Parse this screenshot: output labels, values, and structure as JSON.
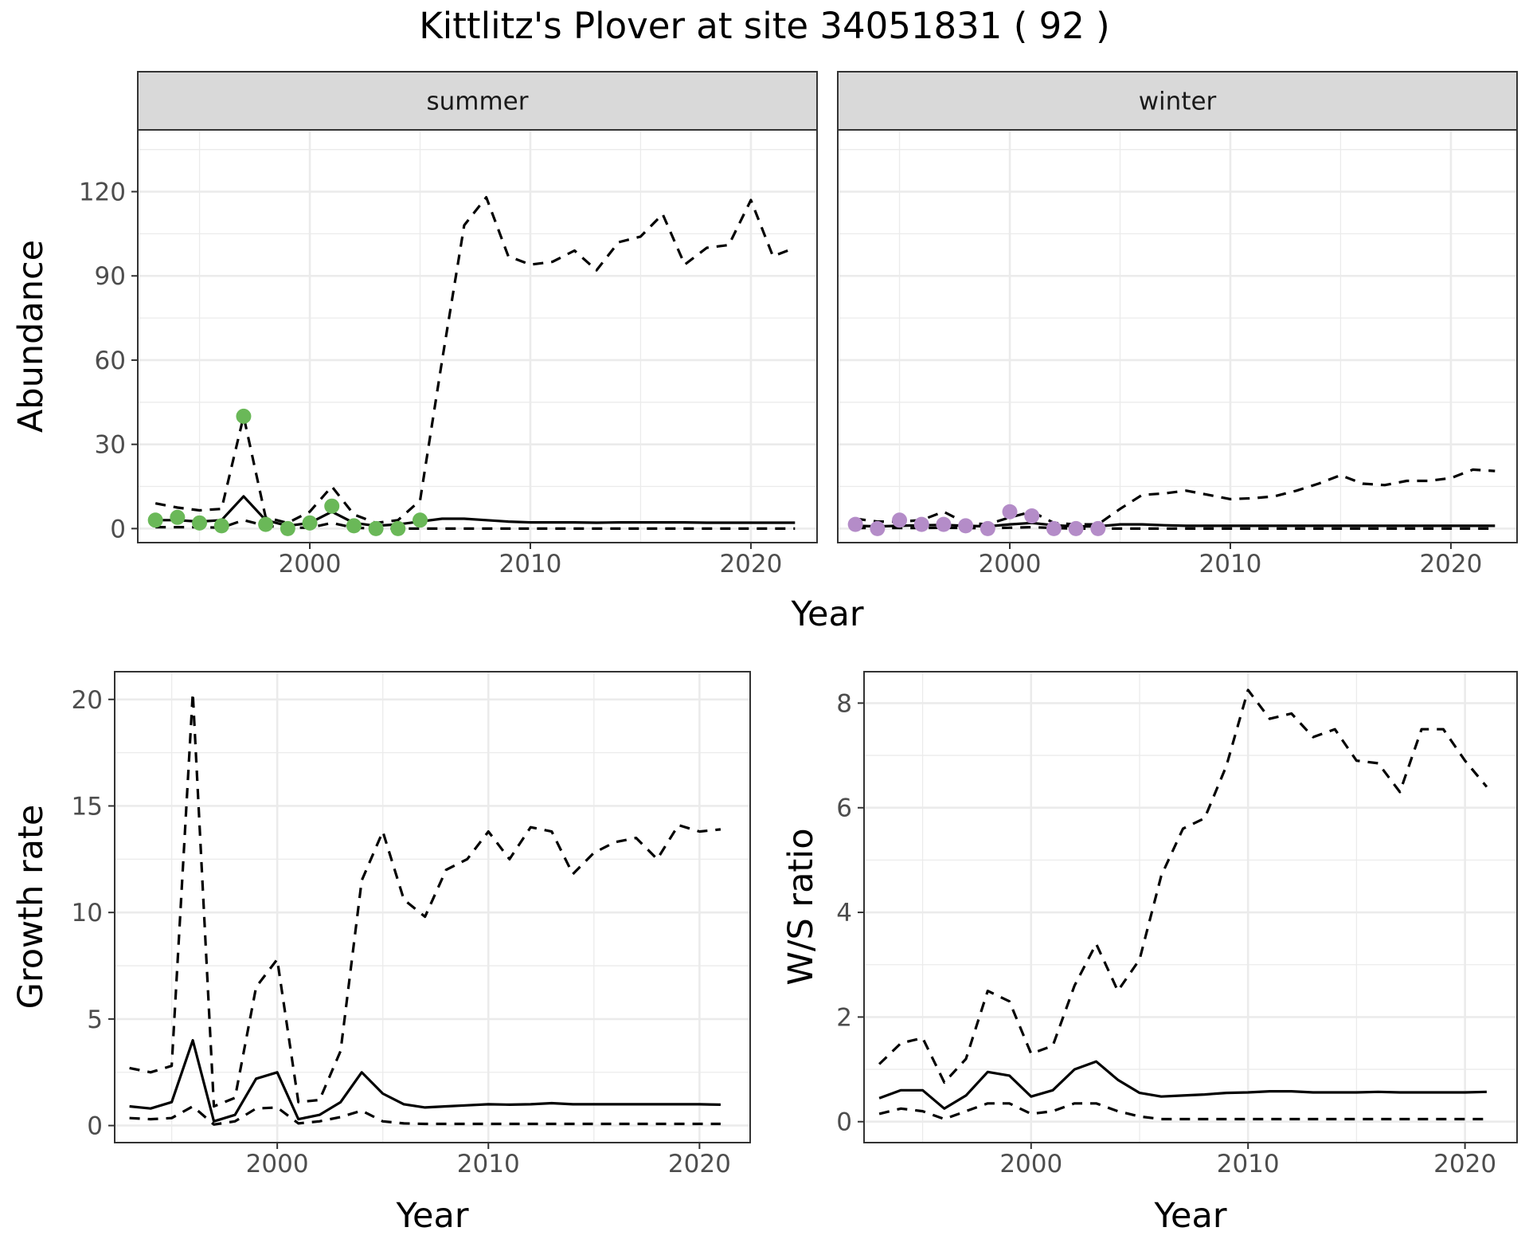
{
  "title": "Kittlitz's Plover at site 34051831 ( 92 )",
  "colors": {
    "summer_points": "#6ab858",
    "winter_points": "#b48cc8",
    "lines": "#000000",
    "grid": "#ebebeb",
    "strip_fill": "#d9d9d9"
  },
  "chart_data": [
    {
      "type": "line",
      "panel": "summer",
      "strip": "summer",
      "xlabel": "Year",
      "ylabel": "Abundance",
      "xlim": [
        1992.2,
        2023.0
      ],
      "ylim": [
        -5,
        142
      ],
      "xticks": [
        2000,
        2010,
        2020
      ],
      "yticks": [
        0,
        30,
        60,
        90,
        120
      ],
      "grid": true,
      "series": [
        {
          "role": "median",
          "style": "solid",
          "x": [
            1993,
            1994,
            1995,
            1996,
            1997,
            1998,
            1999,
            2000,
            2001,
            2002,
            2003,
            2004,
            2005,
            2006,
            2007,
            2008,
            2009,
            2010,
            2011,
            2012,
            2013,
            2014,
            2015,
            2016,
            2017,
            2018,
            2019,
            2020,
            2021,
            2022
          ],
          "y": [
            3,
            3,
            2.5,
            3,
            11.5,
            3,
            1,
            2,
            6,
            2,
            1,
            1.5,
            2.5,
            3.5,
            3.5,
            3,
            2.5,
            2.2,
            2.2,
            2.2,
            2.1,
            2.2,
            2.2,
            2.2,
            2.2,
            2.1,
            2.1,
            2.1,
            2.1,
            2.1
          ]
        },
        {
          "role": "upper",
          "style": "dashed",
          "x": [
            1993,
            1994,
            1995,
            1996,
            1997,
            1998,
            1999,
            2000,
            2001,
            2002,
            2003,
            2004,
            2005,
            2006,
            2007,
            2008,
            2009,
            2010,
            2011,
            2012,
            2013,
            2014,
            2015,
            2016,
            2017,
            2018,
            2019,
            2020,
            2021,
            2022
          ],
          "y": [
            9,
            7.5,
            6.5,
            7,
            40,
            4,
            2,
            6,
            15,
            5,
            2,
            3,
            10,
            60,
            108,
            118,
            97,
            94,
            95,
            99,
            92,
            102,
            104,
            112,
            94,
            100,
            101,
            117,
            97,
            100
          ]
        },
        {
          "role": "lower",
          "style": "dashed",
          "x": [
            1993,
            1994,
            1995,
            1996,
            1997,
            1998,
            1999,
            2000,
            2001,
            2002,
            2003,
            2004,
            2005,
            2006,
            2007,
            2008,
            2009,
            2010,
            2011,
            2012,
            2013,
            2014,
            2015,
            2016,
            2017,
            2018,
            2019,
            2020,
            2021,
            2022
          ],
          "y": [
            0.5,
            0.5,
            0.5,
            0.3,
            3,
            1,
            0.3,
            0.3,
            2,
            0.3,
            0,
            0,
            0,
            0,
            0,
            0,
            0,
            0,
            0,
            0,
            0,
            0,
            0,
            0,
            0,
            0,
            0,
            0,
            0,
            0
          ]
        },
        {
          "role": "observed",
          "style": "points",
          "x": [
            1993,
            1994,
            1995,
            1996,
            1997,
            1998,
            1999,
            2000,
            2001,
            2002,
            2003,
            2004,
            2005
          ],
          "y": [
            3,
            4,
            2,
            1,
            40,
            1.5,
            0,
            2,
            8,
            1,
            0,
            0,
            3
          ]
        }
      ]
    },
    {
      "type": "line",
      "panel": "winter",
      "strip": "winter",
      "xlabel": "Year",
      "ylabel": "",
      "xlim": [
        1992.2,
        2023.0
      ],
      "ylim": [
        -5,
        142
      ],
      "xticks": [
        2000,
        2010,
        2020
      ],
      "yticks": [],
      "grid": true,
      "series": [
        {
          "role": "median",
          "style": "solid",
          "x": [
            1993,
            1994,
            1995,
            1996,
            1997,
            1998,
            1999,
            2000,
            2001,
            2002,
            2003,
            2004,
            2005,
            2006,
            2007,
            2008,
            2009,
            2010,
            2011,
            2012,
            2013,
            2014,
            2015,
            2016,
            2017,
            2018,
            2019,
            2020,
            2021,
            2022
          ],
          "y": [
            1,
            0.8,
            1,
            1.2,
            1.3,
            1,
            0.8,
            1.5,
            2,
            1.2,
            0.8,
            0.8,
            1.5,
            1.5,
            1.2,
            1,
            1,
            1,
            1,
            1,
            1,
            1,
            1,
            1,
            1,
            1,
            1,
            1,
            1,
            1
          ]
        },
        {
          "role": "upper",
          "style": "dashed",
          "x": [
            1993,
            1994,
            1995,
            1996,
            1997,
            1998,
            1999,
            2000,
            2001,
            2002,
            2003,
            2004,
            2005,
            2006,
            2007,
            2008,
            2009,
            2010,
            2011,
            2012,
            2013,
            2014,
            2015,
            2016,
            2017,
            2018,
            2019,
            2020,
            2021,
            2022
          ],
          "y": [
            3.5,
            2.5,
            2.5,
            3,
            6,
            2,
            1.5,
            4,
            6,
            2,
            1.5,
            1.5,
            7,
            12,
            12.5,
            13.5,
            12,
            10.5,
            10.8,
            11.5,
            13.5,
            16,
            19,
            16,
            15.5,
            17,
            17,
            18,
            21,
            20.5
          ]
        },
        {
          "role": "lower",
          "style": "dashed",
          "x": [
            1993,
            1994,
            1995,
            1996,
            1997,
            1998,
            1999,
            2000,
            2001,
            2002,
            2003,
            2004,
            2005,
            2006,
            2007,
            2008,
            2009,
            2010,
            2011,
            2012,
            2013,
            2014,
            2015,
            2016,
            2017,
            2018,
            2019,
            2020,
            2021,
            2022
          ],
          "y": [
            0.2,
            0.2,
            0.2,
            0.2,
            0.3,
            0.2,
            0.1,
            0.3,
            0.5,
            0.2,
            0,
            0,
            0,
            0,
            0,
            0,
            0,
            0,
            0,
            0,
            0,
            0,
            0,
            0,
            0,
            0,
            0,
            0,
            0,
            0
          ]
        },
        {
          "role": "observed",
          "style": "points",
          "x": [
            1993,
            1994,
            1995,
            1996,
            1997,
            1998,
            1999,
            2000,
            2001,
            2002,
            2003,
            2004
          ],
          "y": [
            1.5,
            0,
            3,
            1.5,
            1.5,
            1,
            0,
            6,
            4.5,
            0,
            0,
            0
          ]
        }
      ]
    },
    {
      "type": "line",
      "panel": "growth",
      "xlabel": "Year",
      "ylabel": "Growth rate",
      "xlim": [
        1992.3,
        2022.4
      ],
      "ylim": [
        -0.8,
        21.3
      ],
      "xticks": [
        2000,
        2010,
        2020
      ],
      "yticks": [
        0,
        5,
        10,
        15,
        20
      ],
      "grid": true,
      "series": [
        {
          "role": "median",
          "style": "solid",
          "x": [
            1993,
            1994,
            1995,
            1996,
            1997,
            1998,
            1999,
            2000,
            2001,
            2002,
            2003,
            2004,
            2005,
            2006,
            2007,
            2008,
            2009,
            2010,
            2011,
            2012,
            2013,
            2014,
            2015,
            2016,
            2017,
            2018,
            2019,
            2020,
            2021
          ],
          "y": [
            0.9,
            0.8,
            1.1,
            4,
            0.2,
            0.5,
            2.2,
            2.5,
            0.3,
            0.5,
            1.1,
            2.5,
            1.5,
            1,
            0.85,
            0.9,
            0.95,
            1,
            0.98,
            1,
            1.05,
            1,
            1,
            1,
            1,
            1,
            1,
            1,
            0.98
          ]
        },
        {
          "role": "upper",
          "style": "dashed",
          "x": [
            1993,
            1994,
            1995,
            1996,
            1997,
            1998,
            1999,
            2000,
            2001,
            2002,
            2003,
            2004,
            2005,
            2006,
            2007,
            2008,
            2009,
            2010,
            2011,
            2012,
            2013,
            2014,
            2015,
            2016,
            2017,
            2018,
            2019,
            2020,
            2021
          ],
          "y": [
            2.7,
            2.5,
            2.8,
            20.3,
            0.9,
            1.3,
            6.5,
            7.8,
            1.1,
            1.2,
            3.5,
            11.5,
            13.8,
            10.6,
            9.8,
            12,
            12.5,
            13.8,
            12.5,
            14,
            13.8,
            11.8,
            12.8,
            13.3,
            13.5,
            12.5,
            14.1,
            13.8,
            13.9
          ]
        },
        {
          "role": "lower",
          "style": "dashed",
          "x": [
            1993,
            1994,
            1995,
            1996,
            1997,
            1998,
            1999,
            2000,
            2001,
            2002,
            2003,
            2004,
            2005,
            2006,
            2007,
            2008,
            2009,
            2010,
            2011,
            2012,
            2013,
            2014,
            2015,
            2016,
            2017,
            2018,
            2019,
            2020,
            2021
          ],
          "y": [
            0.35,
            0.3,
            0.35,
            0.9,
            0.05,
            0.2,
            0.8,
            0.85,
            0.1,
            0.2,
            0.4,
            0.7,
            0.2,
            0.1,
            0.08,
            0.08,
            0.08,
            0.08,
            0.08,
            0.08,
            0.08,
            0.08,
            0.08,
            0.08,
            0.08,
            0.08,
            0.08,
            0.08,
            0.08
          ]
        }
      ]
    },
    {
      "type": "line",
      "panel": "ws-ratio",
      "xlabel": "Year",
      "ylabel": "W/S ratio",
      "xlim": [
        1992.3,
        2022.4
      ],
      "ylim": [
        -0.4,
        8.6
      ],
      "xticks": [
        2000,
        2010,
        2020
      ],
      "yticks": [
        0,
        2,
        4,
        6,
        8
      ],
      "grid": true,
      "series": [
        {
          "role": "median",
          "style": "solid",
          "x": [
            1993,
            1994,
            1995,
            1996,
            1997,
            1998,
            1999,
            2000,
            2001,
            2002,
            2003,
            2004,
            2005,
            2006,
            2007,
            2008,
            2009,
            2010,
            2011,
            2012,
            2013,
            2014,
            2015,
            2016,
            2017,
            2018,
            2019,
            2020,
            2021
          ],
          "y": [
            0.45,
            0.6,
            0.6,
            0.25,
            0.5,
            0.95,
            0.88,
            0.48,
            0.6,
            1,
            1.15,
            0.8,
            0.55,
            0.48,
            0.5,
            0.52,
            0.55,
            0.56,
            0.58,
            0.58,
            0.56,
            0.56,
            0.56,
            0.57,
            0.56,
            0.56,
            0.56,
            0.56,
            0.57
          ]
        },
        {
          "role": "upper",
          "style": "dashed",
          "x": [
            1993,
            1994,
            1995,
            1996,
            1997,
            1998,
            1999,
            2000,
            2001,
            2002,
            2003,
            2004,
            2005,
            2006,
            2007,
            2008,
            2009,
            2010,
            2011,
            2012,
            2013,
            2014,
            2015,
            2016,
            2017,
            2018,
            2019,
            2020,
            2021
          ],
          "y": [
            1.1,
            1.5,
            1.6,
            0.75,
            1.2,
            2.5,
            2.3,
            1.3,
            1.45,
            2.6,
            3.4,
            2.5,
            3.1,
            4.7,
            5.6,
            5.8,
            6.8,
            8.25,
            7.7,
            7.8,
            7.35,
            7.5,
            6.9,
            6.85,
            6.3,
            7.5,
            7.5,
            6.9,
            6.4
          ]
        },
        {
          "role": "lower",
          "style": "dashed",
          "x": [
            1993,
            1994,
            1995,
            1996,
            1997,
            1998,
            1999,
            2000,
            2001,
            2002,
            2003,
            2004,
            2005,
            2006,
            2007,
            2008,
            2009,
            2010,
            2011,
            2012,
            2013,
            2014,
            2015,
            2016,
            2017,
            2018,
            2019,
            2020,
            2021
          ],
          "y": [
            0.15,
            0.25,
            0.2,
            0.05,
            0.2,
            0.35,
            0.35,
            0.15,
            0.2,
            0.35,
            0.35,
            0.2,
            0.1,
            0.05,
            0.05,
            0.05,
            0.05,
            0.05,
            0.05,
            0.05,
            0.05,
            0.05,
            0.05,
            0.05,
            0.05,
            0.05,
            0.05,
            0.05,
            0.05
          ]
        }
      ]
    }
  ]
}
